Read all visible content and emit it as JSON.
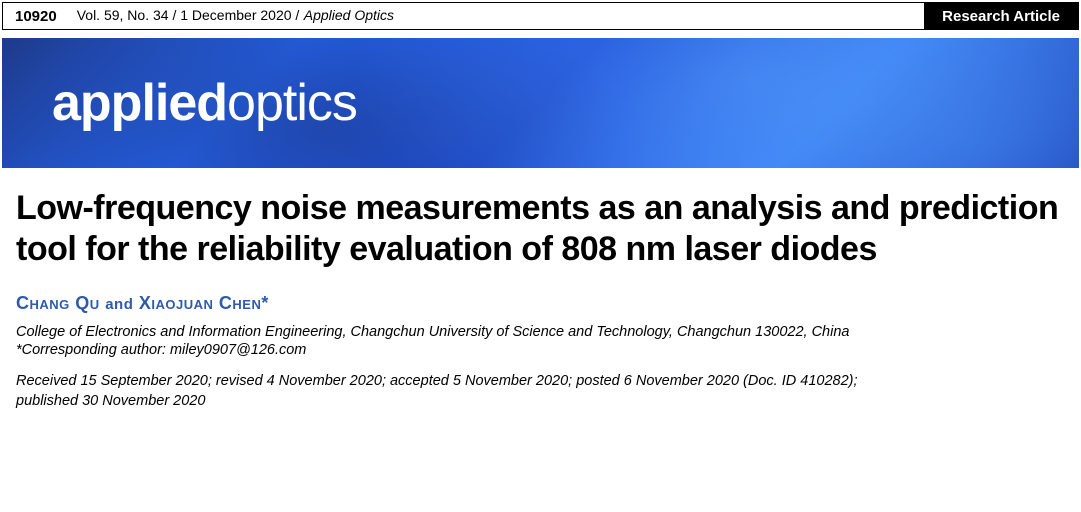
{
  "header": {
    "page_number": "10920",
    "issue_info": "Vol. 59, No. 34 / 1 December 2020 /",
    "journal_name_top": "Applied Optics",
    "article_type": "Research Article"
  },
  "banner": {
    "brand_bold": "applied",
    "brand_light": "optics",
    "background_colors": {
      "primary": "#1e3a8a",
      "secondary": "#2563eb",
      "accent": "#3b82f6"
    }
  },
  "article": {
    "title": "Low-frequency noise measurements as an analysis and prediction tool for the reliability evaluation of 808 nm laser diodes",
    "authors_line": {
      "author1": "Chang Qu",
      "connector": "and",
      "author2": "Xiaojuan Chen*"
    },
    "affiliation": "College of Electronics and Information Engineering, Changchun University of Science and Technology, Changchun 130022, China",
    "corresponding": "*Corresponding author: miley0907@126.com",
    "dates_line1": "Received 15 September 2020; revised 4 November 2020; accepted 5 November 2020; posted 6 November 2020 (Doc. ID 410282);",
    "dates_line2": "published 30 November 2020"
  },
  "colors": {
    "author_color": "#2e5aac",
    "text_color": "#000000",
    "background": "#ffffff"
  },
  "typography": {
    "title_fontsize": 34,
    "author_fontsize": 18,
    "body_fontsize": 14.5,
    "banner_fontsize": 52
  }
}
